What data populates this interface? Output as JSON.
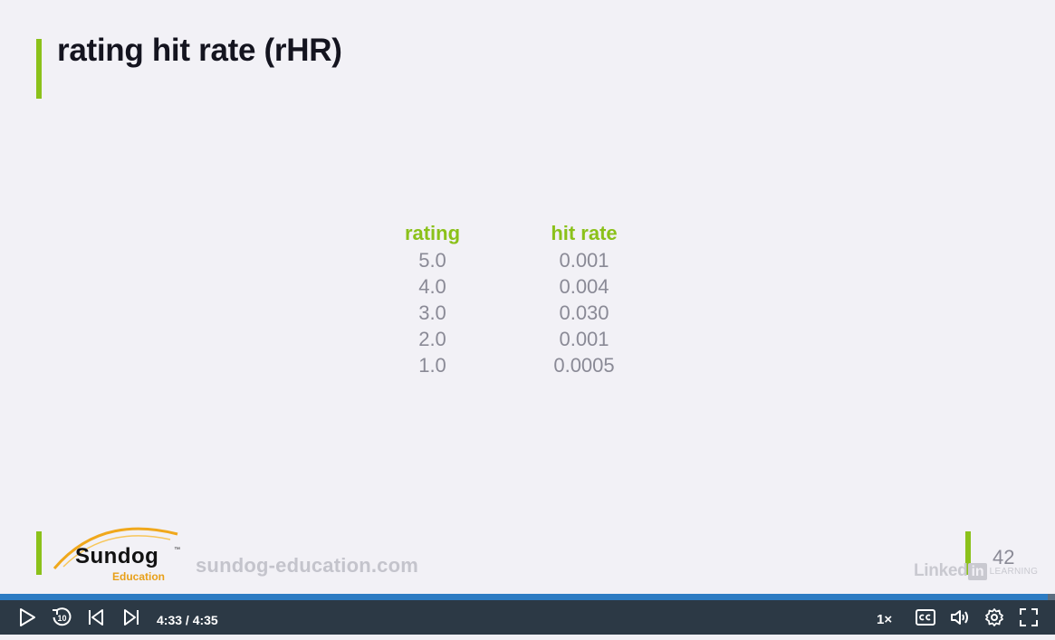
{
  "slide": {
    "title": "rating hit rate (rHR)",
    "table": {
      "headers": [
        "rating",
        "hit rate"
      ],
      "rows": [
        [
          "5.0",
          "0.001"
        ],
        [
          "4.0",
          "0.004"
        ],
        [
          "3.0",
          "0.030"
        ],
        [
          "2.0",
          "0.001"
        ],
        [
          "1.0",
          "0.0005"
        ]
      ]
    },
    "footer": {
      "logo_text": "Sundog",
      "logo_tm": "™",
      "logo_sub": "Education",
      "site": "sundog-education.com",
      "page_number": "42",
      "brand_word": "Linked",
      "brand_in": "in",
      "brand_learning": "LEARNING"
    },
    "accent_color": "#8bc11a"
  },
  "player": {
    "time_display": "4:33 / 4:35",
    "progress_fraction": 0.993,
    "speed_label": "1×",
    "icons": [
      "play-icon",
      "rewind-10-icon",
      "previous-icon",
      "next-icon",
      "closed-captions-icon",
      "volume-icon",
      "settings-icon",
      "fullscreen-icon"
    ],
    "skip_label": "10"
  }
}
